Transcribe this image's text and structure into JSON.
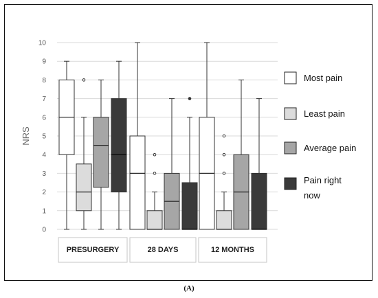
{
  "caption": "(A)",
  "chart_data": {
    "type": "boxplot",
    "ylabel": "NRS",
    "ylim": [
      0,
      10
    ],
    "yticks": [
      0,
      1,
      2,
      3,
      4,
      5,
      6,
      7,
      8,
      9,
      10
    ],
    "grid": true,
    "legend_position": "right",
    "categories": [
      "PRESURGERY",
      "28 DAYS",
      "12 MONTHS"
    ],
    "series": [
      {
        "name": "Most pain",
        "color": "#ffffff",
        "boxes": [
          {
            "min": 0,
            "q1": 4,
            "median": 6,
            "q3": 8,
            "max": 9,
            "outliers": []
          },
          {
            "min": 0,
            "q1": 0,
            "median": 3,
            "q3": 5,
            "max": 10,
            "outliers": []
          },
          {
            "min": 0,
            "q1": 0,
            "median": 3,
            "q3": 6,
            "max": 10,
            "outliers": []
          }
        ]
      },
      {
        "name": "Least pain",
        "color": "#dcdcdc",
        "boxes": [
          {
            "min": 0,
            "q1": 1,
            "median": 2,
            "q3": 3.5,
            "max": 6,
            "outliers": [
              8
            ]
          },
          {
            "min": 0,
            "q1": 0,
            "median": 0,
            "q3": 1,
            "max": 2,
            "outliers": [
              3,
              4
            ]
          },
          {
            "min": 0,
            "q1": 0,
            "median": 0,
            "q3": 1,
            "max": 2,
            "outliers": [
              3,
              4,
              5
            ]
          }
        ]
      },
      {
        "name": "Average pain",
        "color": "#a6a6a6",
        "boxes": [
          {
            "min": 0,
            "q1": 2.25,
            "median": 4.5,
            "q3": 6,
            "max": 8,
            "outliers": []
          },
          {
            "min": 0,
            "q1": 0,
            "median": 1.5,
            "q3": 3,
            "max": 7,
            "outliers": []
          },
          {
            "min": 0,
            "q1": 0,
            "median": 2,
            "q3": 4,
            "max": 8,
            "outliers": []
          }
        ]
      },
      {
        "name": "Pain right now",
        "color": "#3a3a3a",
        "boxes": [
          {
            "min": 0,
            "q1": 2,
            "median": 4,
            "q3": 7,
            "max": 9,
            "outliers": []
          },
          {
            "min": 0,
            "q1": 0,
            "median": 0,
            "q3": 2.5,
            "max": 6,
            "outliers": [
              7
            ]
          },
          {
            "min": 0,
            "q1": 0,
            "median": 0,
            "q3": 3,
            "max": 7,
            "outliers": []
          }
        ]
      }
    ]
  }
}
